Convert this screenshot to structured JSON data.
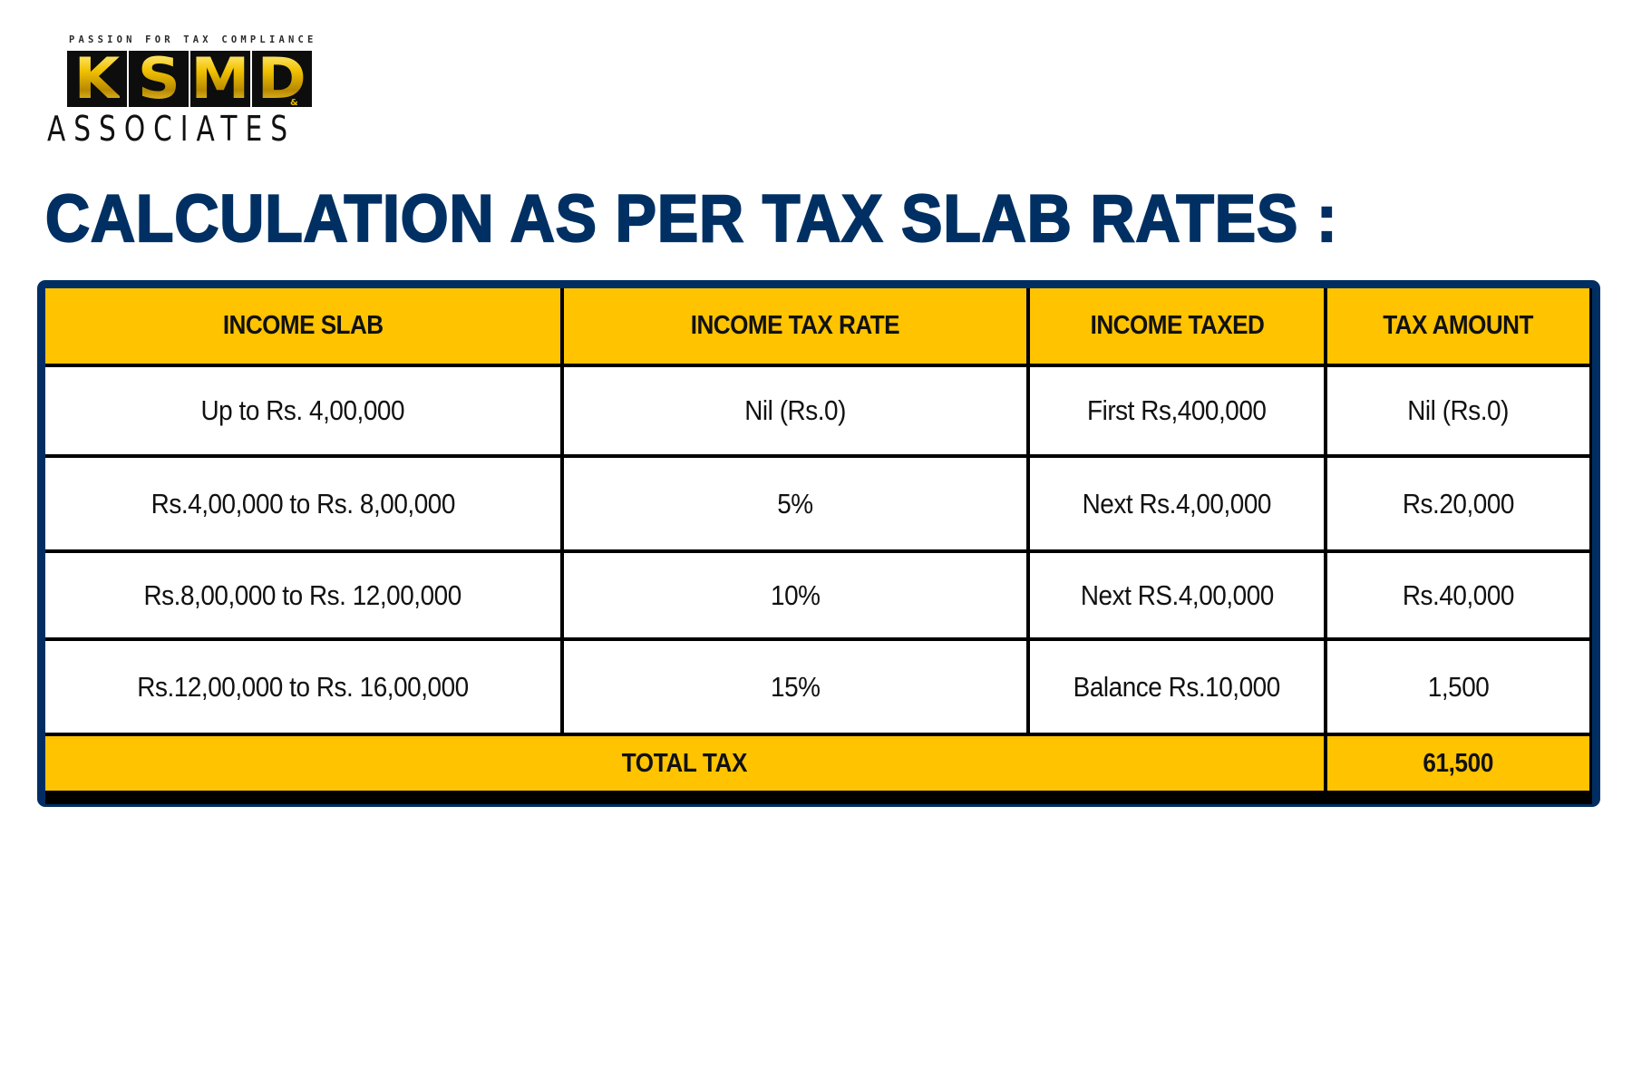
{
  "logo": {
    "tagline": "PASSION FOR TAX COMPLIANCE",
    "letters": [
      "K",
      "S",
      "M",
      "D"
    ],
    "ampersand": "&",
    "subtitle": "ASSOCIATES"
  },
  "page_title": "CALCULATION AS PER TAX SLAB RATES :",
  "colors": {
    "title": "#003063",
    "frame": "#002e63",
    "header_fill": "#ffc300",
    "logo_gold": "#e6b800"
  },
  "table": {
    "headers": [
      "INCOME SLAB",
      "INCOME TAX RATE",
      "INCOME TAXED",
      "TAX AMOUNT"
    ],
    "rows": [
      [
        "Up to Rs. 4,00,000",
        "Nil (Rs.0)",
        "First Rs,400,000",
        "Nil (Rs.0)"
      ],
      [
        "Rs.4,00,000 to Rs. 8,00,000",
        "5%",
        "Next Rs.4,00,000",
        "Rs.20,000"
      ],
      [
        "Rs.8,00,000 to Rs. 12,00,000",
        "10%",
        "Next RS.4,00,000",
        "Rs.40,000"
      ],
      [
        "Rs.12,00,000 to Rs. 16,00,000",
        "15%",
        "Balance Rs.10,000",
        "1,500"
      ]
    ],
    "total": {
      "label": "TOTAL TAX",
      "value": "61,500"
    }
  }
}
